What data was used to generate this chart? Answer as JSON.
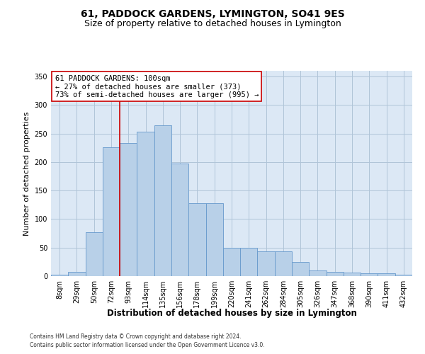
{
  "title": "61, PADDOCK GARDENS, LYMINGTON, SO41 9ES",
  "subtitle": "Size of property relative to detached houses in Lymington",
  "xlabel": "Distribution of detached houses by size in Lymington",
  "ylabel": "Number of detached properties",
  "categories": [
    "8sqm",
    "29sqm",
    "50sqm",
    "72sqm",
    "93sqm",
    "114sqm",
    "135sqm",
    "156sqm",
    "178sqm",
    "199sqm",
    "220sqm",
    "241sqm",
    "262sqm",
    "284sqm",
    "305sqm",
    "326sqm",
    "347sqm",
    "368sqm",
    "390sqm",
    "411sqm",
    "432sqm"
  ],
  "values": [
    2,
    8,
    77,
    226,
    234,
    253,
    265,
    198,
    128,
    128,
    50,
    50,
    44,
    44,
    25,
    10,
    8,
    6,
    5,
    5,
    3
  ],
  "bar_color": "#b8d0e8",
  "bar_edge_color": "#6699cc",
  "vline_x_index": 4,
  "vline_color": "#cc0000",
  "annotation_text": "61 PADDOCK GARDENS: 100sqm\n← 27% of detached houses are smaller (373)\n73% of semi-detached houses are larger (995) →",
  "annotation_box_color": "#ffffff",
  "annotation_box_edge": "#cc0000",
  "background_color": "#ffffff",
  "plot_bg_color": "#dce8f5",
  "grid_color": "#b0c4d8",
  "ylim": [
    0,
    360
  ],
  "yticks": [
    0,
    50,
    100,
    150,
    200,
    250,
    300,
    350
  ],
  "footer1": "Contains HM Land Registry data © Crown copyright and database right 2024.",
  "footer2": "Contains public sector information licensed under the Open Government Licence v3.0.",
  "title_fontsize": 10,
  "subtitle_fontsize": 9,
  "tick_fontsize": 7,
  "ylabel_fontsize": 8,
  "xlabel_fontsize": 8.5,
  "annotation_fontsize": 7.5,
  "footer_fontsize": 5.5
}
